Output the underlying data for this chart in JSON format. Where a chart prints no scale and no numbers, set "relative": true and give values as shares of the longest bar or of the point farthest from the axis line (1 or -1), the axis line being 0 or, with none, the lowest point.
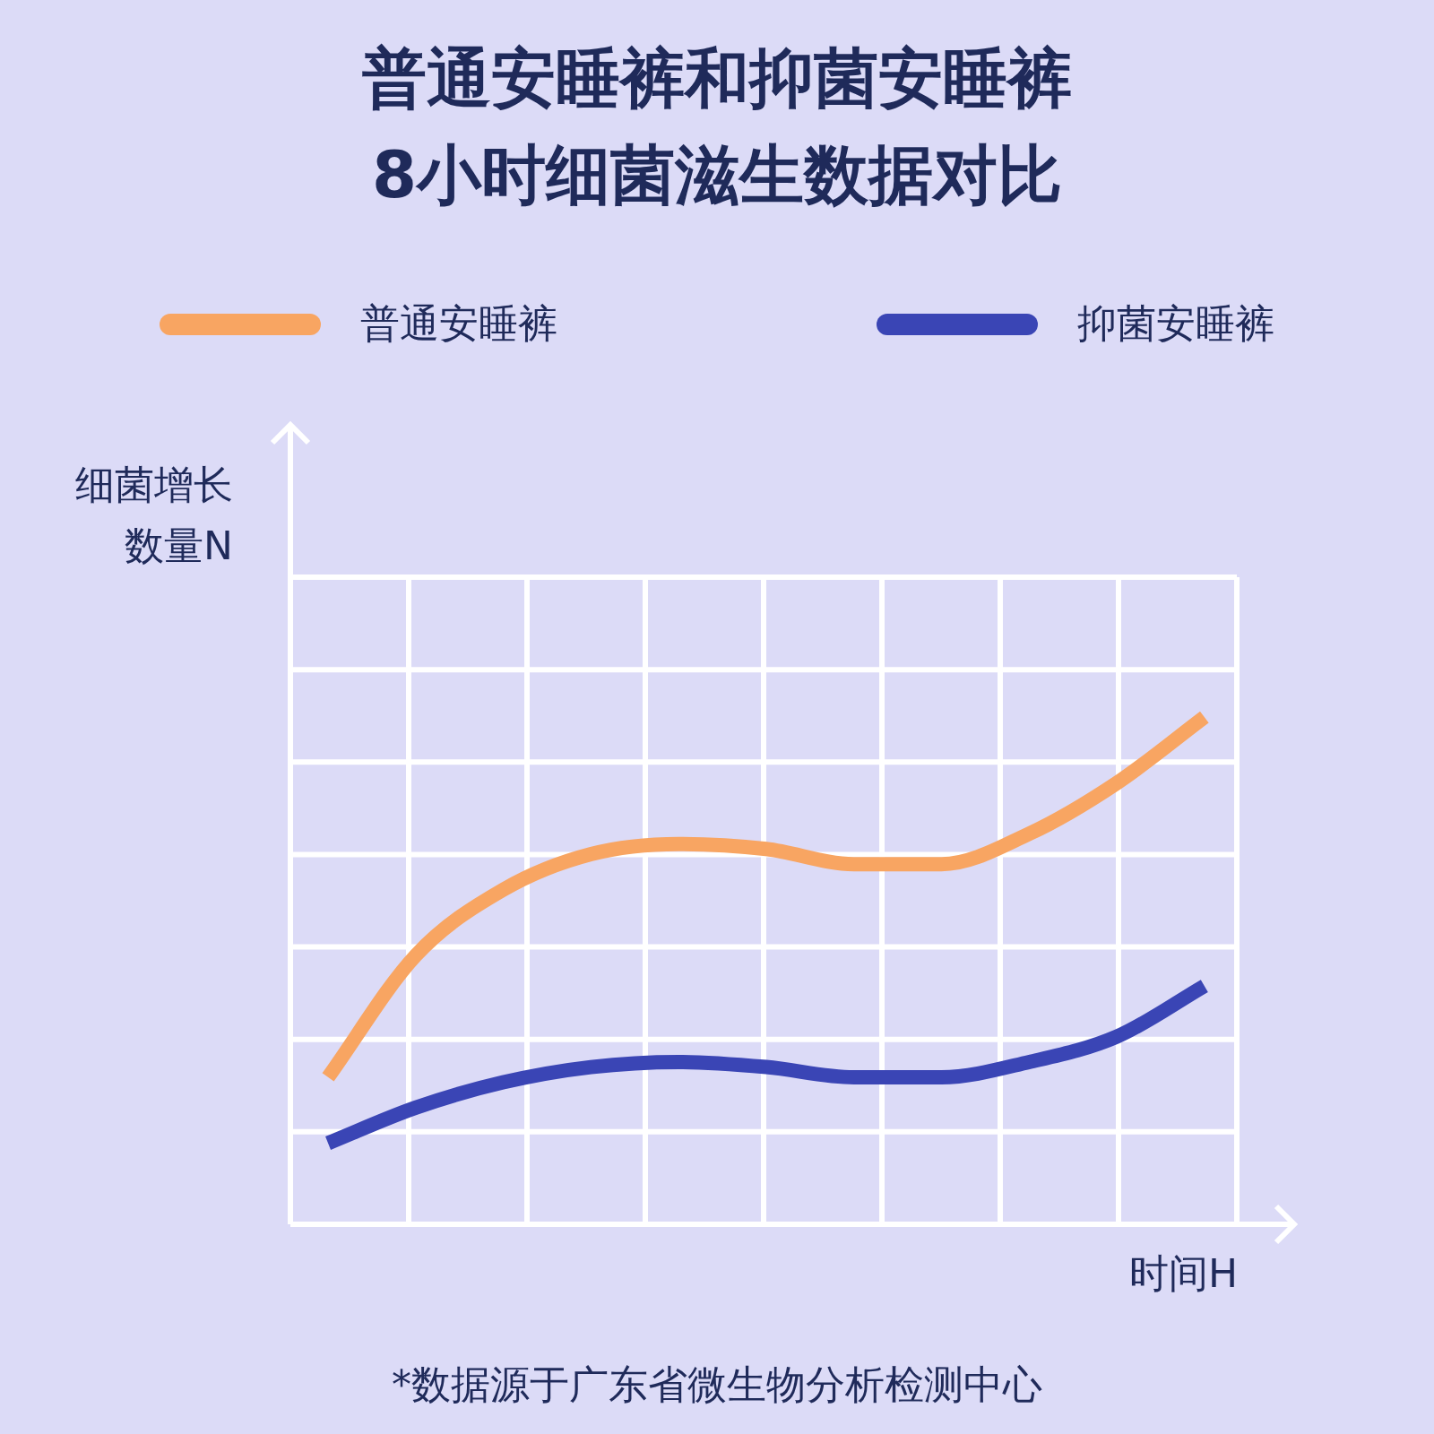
{
  "chart_data": {
    "type": "line",
    "title": "普通安睡裤和抑菌安睡裤\n8小时细菌滋生数据对比",
    "xlabel": "时间H",
    "ylabel": "细菌增长数量N",
    "relative": true,
    "grid": true,
    "legend": "top",
    "marker": "none",
    "line_style": "solid",
    "categories": [
      null,
      null,
      null,
      null,
      null,
      null,
      null,
      null,
      null,
      null,
      null
    ],
    "series": [
      {
        "name": "普通安睡裤",
        "color": "#f8a562",
        "values": [
          0.29,
          0.53,
          0.66,
          0.73,
          0.75,
          0.74,
          0.71,
          0.71,
          0.77,
          0.87,
          1
        ]
      },
      {
        "name": "抑菌安睡裤",
        "color": "#3a45b5",
        "values": [
          0.16,
          0.23,
          0.28,
          0.31,
          0.32,
          0.31,
          0.29,
          0.29,
          0.32,
          0.37,
          0.47
        ]
      }
    ],
    "annotations": [
      "*数据源于广东省微生物分析检测中心"
    ]
  }
}
